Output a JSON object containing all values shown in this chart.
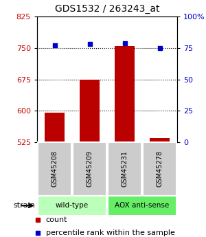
{
  "title": "GDS1532 / 263243_at",
  "samples": [
    "GSM45208",
    "GSM45209",
    "GSM45231",
    "GSM45278"
  ],
  "counts": [
    595,
    675,
    755,
    535
  ],
  "percentiles": [
    77,
    78,
    79,
    75
  ],
  "ylim_left": [
    525,
    825
  ],
  "ylim_right": [
    0,
    100
  ],
  "yticks_left": [
    525,
    600,
    675,
    750,
    825
  ],
  "yticks_right": [
    0,
    25,
    50,
    75,
    100
  ],
  "yticklabels_right": [
    "0",
    "25",
    "50",
    "75",
    "100%"
  ],
  "hlines": [
    600,
    675,
    750
  ],
  "groups": [
    {
      "label": "wild-type",
      "indices": [
        0,
        1
      ],
      "color": "#bbffbb"
    },
    {
      "label": "AOX anti-sense",
      "indices": [
        2,
        3
      ],
      "color": "#66ee66"
    }
  ],
  "bar_color": "#bb0000",
  "dot_color": "#0000cc",
  "bar_width": 0.55,
  "strain_label": "strain",
  "legend_count_label": "count",
  "legend_pct_label": "percentile rank within the sample",
  "bg_color": "#ffffff",
  "plot_bg": "#ffffff",
  "tick_color_left": "#cc0000",
  "tick_color_right": "#0000cc",
  "sample_box_color": "#cccccc",
  "sample_box_edge": "#aaaaaa"
}
